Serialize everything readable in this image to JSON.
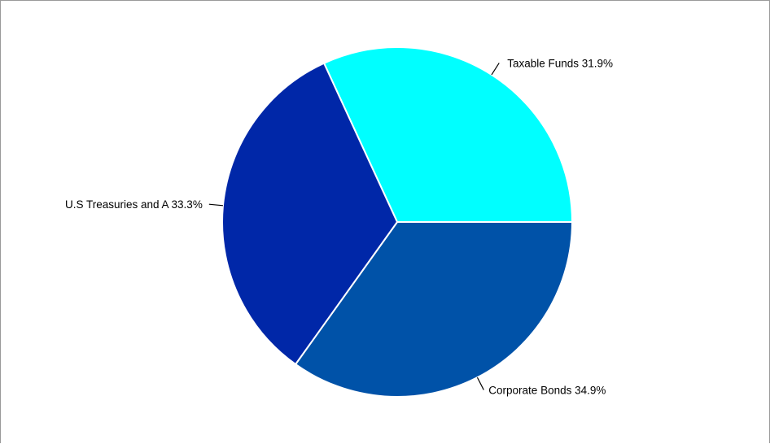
{
  "chart_data": {
    "type": "pie",
    "title": "",
    "legend": "none",
    "slices": [
      {
        "label": "Taxable Funds 31.9%",
        "name": "Taxable Funds",
        "value": 31.9,
        "color": "#00ffff"
      },
      {
        "label": "Corporate Bonds 34.9%",
        "name": "Corporate Bonds",
        "value": 34.9,
        "color": "#0052a8"
      },
      {
        "label": "U.S Treasuries and A 33.3%",
        "name": "U.S Treasuries and A",
        "value": 33.3,
        "color": "#0027a8"
      }
    ]
  }
}
